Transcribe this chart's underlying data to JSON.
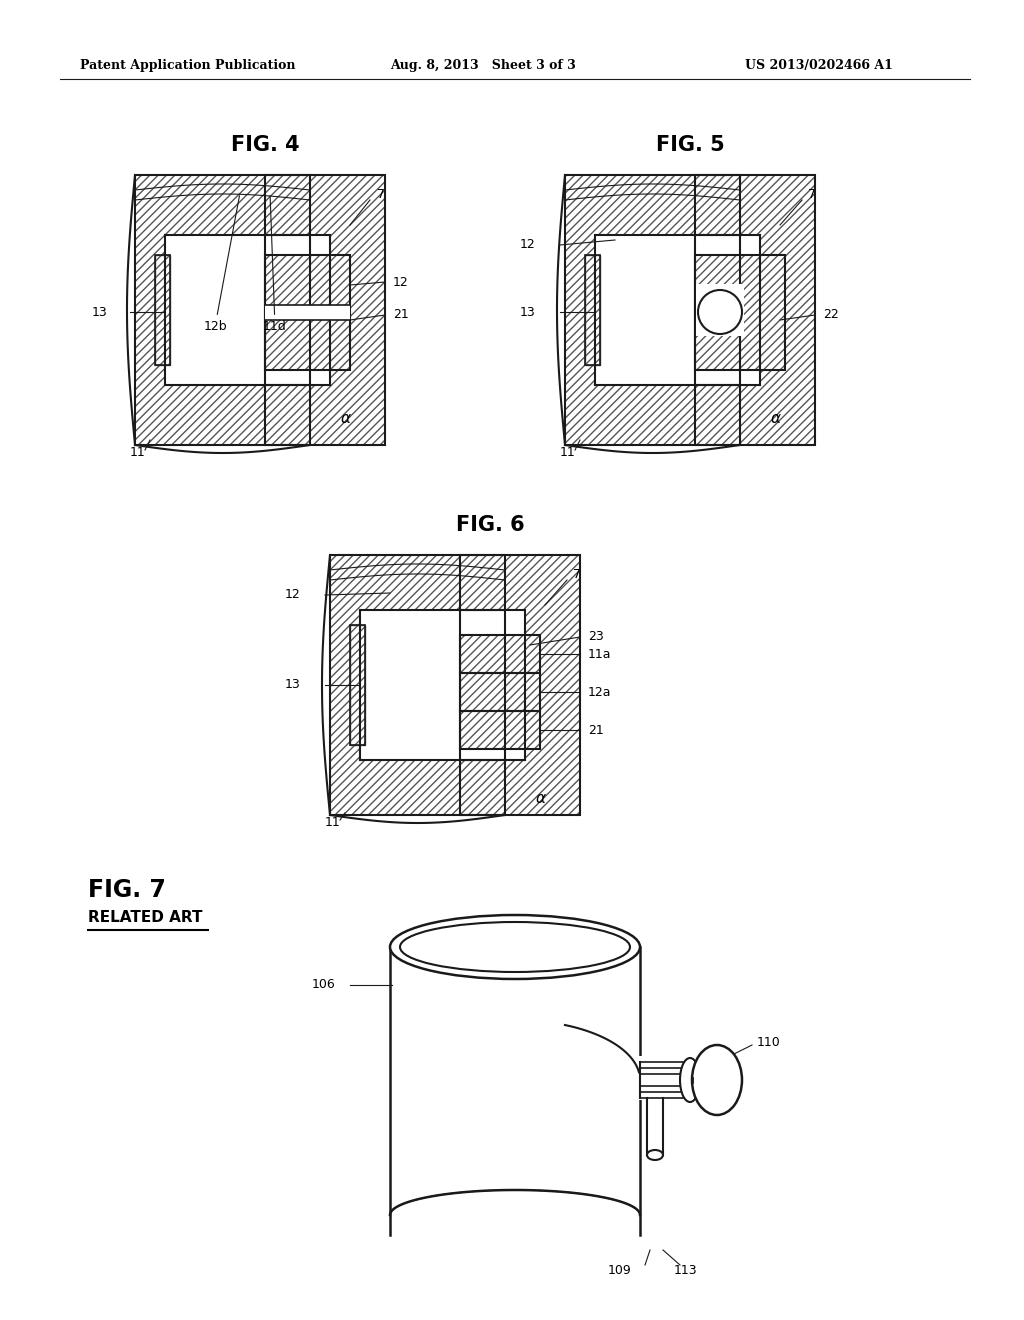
{
  "bg_color": "#ffffff",
  "header_left": "Patent Application Publication",
  "header_mid": "Aug. 8, 2013   Sheet 3 of 3",
  "header_right": "US 2013/0202466 A1",
  "fig4_title": "FIG. 4",
  "fig5_title": "FIG. 5",
  "fig6_title": "FIG. 6",
  "fig7_title": "FIG. 7",
  "fig7_subtitle": "RELATED ART",
  "line_color": "#1a1a1a",
  "text_color": "#000000",
  "font_size_header": 9,
  "font_size_fig_title": 15,
  "font_size_label": 9
}
